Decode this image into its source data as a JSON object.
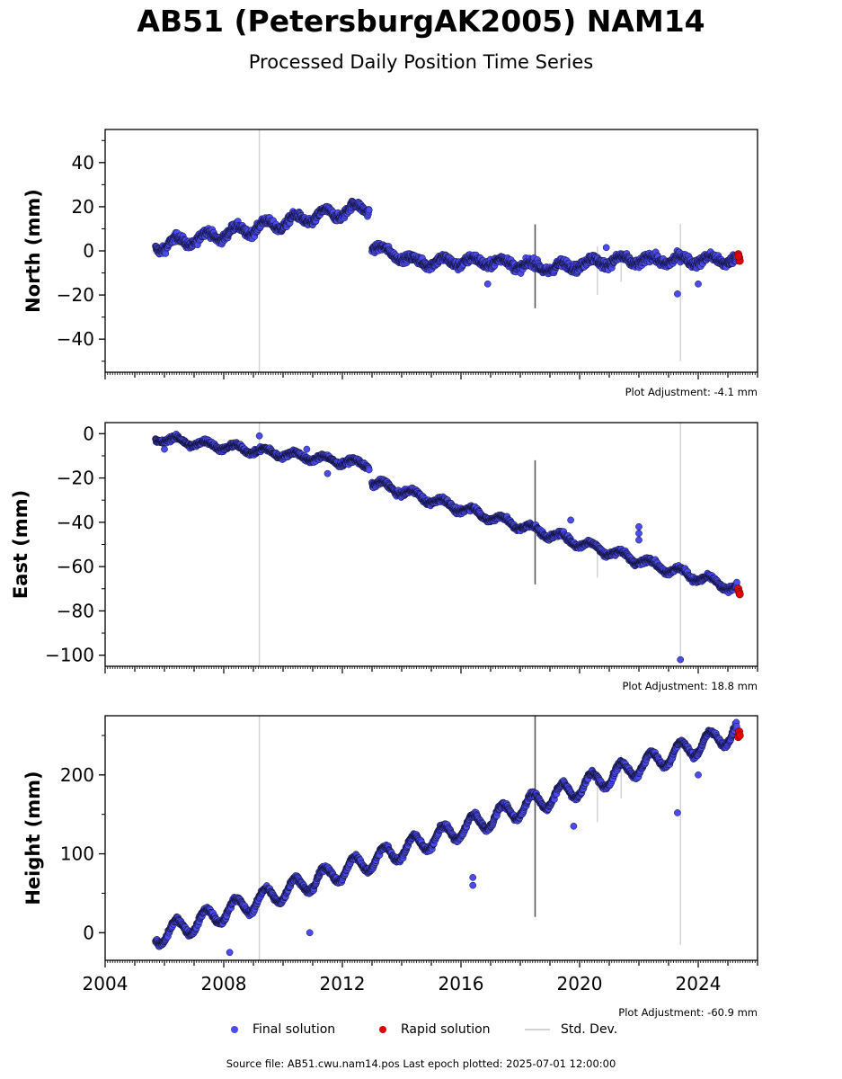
{
  "title": "AB51 (PetersburgAK2005) NAM14",
  "subtitle": "Processed Daily Position Time Series",
  "footer": "Source file: AB51.cwu.nam14.pos  Last epoch plotted: 2025-07-01 12:00:00",
  "legend": {
    "final": "Final solution",
    "rapid": "Rapid solution",
    "std": "Std. Dev."
  },
  "colors": {
    "final": "#4b4bf0",
    "final_edge": "#111133",
    "rapid": "#e00000",
    "std": "#d3d3d3",
    "std_dark": "#555555"
  },
  "chart_data": [
    {
      "type": "scatter",
      "name": "north",
      "ylabel": "North (mm)",
      "ylim": [
        -55,
        55
      ],
      "yticks": [
        -40,
        -20,
        0,
        20,
        40
      ],
      "xlim": [
        2004.0,
        2026.0
      ],
      "adjustment": "Plot Adjustment: -4.1 mm",
      "show_xticklabels": false,
      "segments": [
        {
          "x0": 2005.7,
          "x1": 2012.9,
          "y0": 2,
          "y1": 20,
          "season": 2.5,
          "noise": 2.2
        },
        {
          "x0": 2013.0,
          "x1": 2014.5,
          "y0": 2,
          "y1": -5,
          "season": 1.5,
          "noise": 2.0
        },
        {
          "x0": 2014.5,
          "x1": 2025.3,
          "y0": -5,
          "y1": -4,
          "season": 1.8,
          "noise": 2.4,
          "bump": [
            2019.0,
            -3
          ]
        }
      ],
      "outliers": [
        [
          2023.3,
          -19.5
        ],
        [
          2020.9,
          1.5
        ],
        [
          2024.0,
          -15
        ],
        [
          2016.9,
          -15
        ]
      ],
      "rapid": [
        [
          2025.35,
          -1.5
        ],
        [
          2025.38,
          -3
        ],
        [
          2025.4,
          -4.5
        ],
        [
          2025.36,
          -2.5
        ]
      ],
      "std_lines": [
        [
          2009.2,
          -55,
          55
        ],
        [
          2018.5,
          -26,
          12
        ],
        [
          2023.4,
          -50,
          12
        ],
        [
          2020.6,
          -20,
          2
        ],
        [
          2021.4,
          -14,
          0
        ]
      ]
    },
    {
      "type": "scatter",
      "name": "east",
      "ylabel": "East (mm)",
      "ylim": [
        -105,
        5
      ],
      "yticks": [
        -100,
        -80,
        -60,
        -40,
        -20,
        0
      ],
      "xlim": [
        2004.0,
        2026.0
      ],
      "adjustment": "Plot Adjustment: 18.8 mm",
      "show_xticklabels": false,
      "segments": [
        {
          "x0": 2005.7,
          "x1": 2012.9,
          "y0": -2,
          "y1": -14,
          "season": 1.5,
          "noise": 1.3
        },
        {
          "x0": 2013.0,
          "x1": 2025.3,
          "y0": -22,
          "y1": -70,
          "season": 1.8,
          "noise": 1.4
        }
      ],
      "outliers": [
        [
          2023.4,
          -102
        ],
        [
          2022.0,
          -42
        ],
        [
          2022.0,
          -45
        ],
        [
          2022.0,
          -48
        ],
        [
          2019.7,
          -39
        ],
        [
          2006.0,
          -7
        ],
        [
          2010.8,
          -7
        ],
        [
          2009.2,
          -1
        ],
        [
          2011.5,
          -18
        ]
      ],
      "rapid": [
        [
          2025.35,
          -70
        ],
        [
          2025.38,
          -71.5
        ],
        [
          2025.4,
          -72.5
        ]
      ],
      "std_lines": [
        [
          2009.2,
          -105,
          5
        ],
        [
          2018.5,
          -68,
          -12
        ],
        [
          2023.4,
          -100,
          5
        ],
        [
          2020.6,
          -65,
          -48
        ]
      ]
    },
    {
      "type": "scatter",
      "name": "height",
      "ylabel": "Height (mm)",
      "ylim": [
        -35,
        275
      ],
      "yticks": [
        0,
        100,
        200
      ],
      "xlim": [
        2004.0,
        2026.0
      ],
      "xticks": [
        2004,
        2008,
        2012,
        2016,
        2020,
        2024
      ],
      "adjustment": "Plot Adjustment: -60.9 mm",
      "show_xticklabels": true,
      "segments": [
        {
          "x0": 2005.7,
          "x1": 2025.3,
          "y0": -5,
          "y1": 255,
          "season": 12,
          "noise": 4
        }
      ],
      "outliers": [
        [
          2023.3,
          152
        ],
        [
          2016.4,
          70
        ],
        [
          2016.4,
          60
        ],
        [
          2010.9,
          0
        ],
        [
          2019.8,
          135
        ],
        [
          2024.0,
          200
        ],
        [
          2008.2,
          -25
        ]
      ],
      "rapid": [
        [
          2025.35,
          248
        ],
        [
          2025.38,
          255
        ],
        [
          2025.4,
          250
        ]
      ],
      "std_lines": [
        [
          2009.2,
          -35,
          275
        ],
        [
          2018.5,
          20,
          275
        ],
        [
          2023.4,
          -15,
          240
        ],
        [
          2020.6,
          140,
          195
        ],
        [
          2021.4,
          170,
          225
        ]
      ]
    }
  ]
}
